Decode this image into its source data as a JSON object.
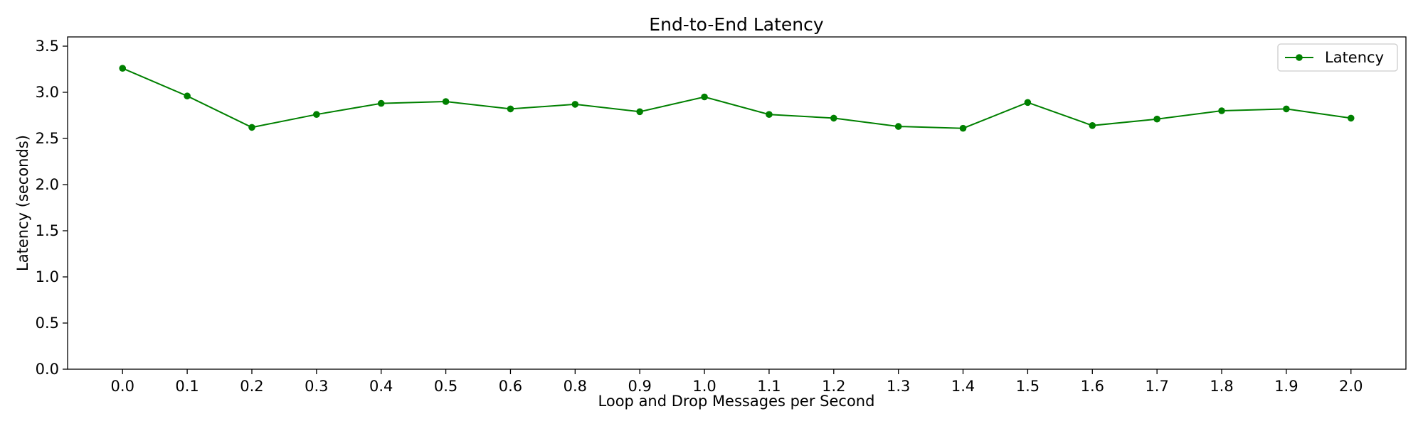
{
  "chart_data": {
    "type": "line",
    "title": "End-to-End Latency",
    "xlabel": "Loop and Drop Messages per Second",
    "ylabel": "Latency (seconds)",
    "categories": [
      "0.0",
      "0.1",
      "0.2",
      "0.3",
      "0.4",
      "0.5",
      "0.6",
      "0.8",
      "0.9",
      "1.0",
      "1.1",
      "1.2",
      "1.3",
      "1.4",
      "1.5",
      "1.6",
      "1.7",
      "1.8",
      "1.9",
      "2.0"
    ],
    "series": [
      {
        "name": "Latency",
        "color": "#008000",
        "values": [
          3.26,
          2.96,
          2.62,
          2.76,
          2.88,
          2.9,
          2.82,
          2.87,
          2.79,
          2.95,
          2.76,
          2.72,
          2.63,
          2.61,
          2.89,
          2.64,
          2.71,
          2.8,
          2.82,
          2.72
        ]
      }
    ],
    "ylim": [
      0,
      3.6
    ],
    "yticks": [
      "0.0",
      "0.5",
      "1.0",
      "1.5",
      "2.0",
      "2.5",
      "3.0",
      "3.5"
    ],
    "grid": false,
    "legend_position": "top-right"
  }
}
